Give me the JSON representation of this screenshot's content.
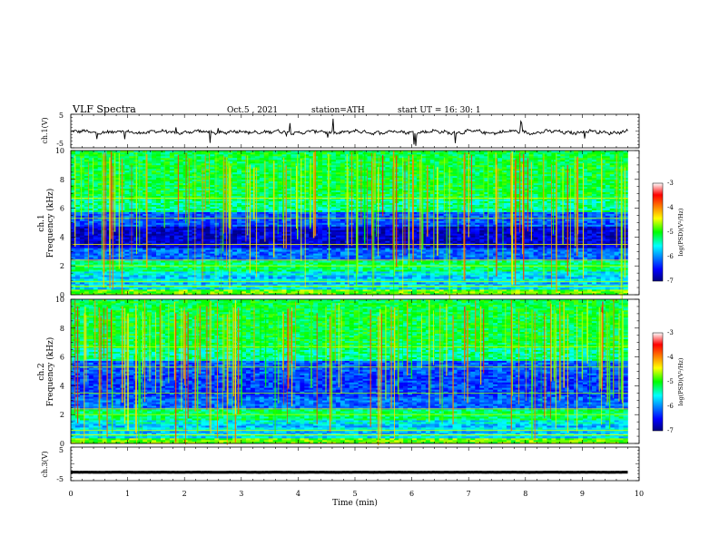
{
  "header": {
    "title": "VLF  Spectra",
    "date": "Oct.5  , 2021",
    "station": "station=ATH",
    "start": "start  UT  =   16: 30: 1"
  },
  "colors": {
    "background": "#ffffff",
    "axis": "#000000",
    "trace": "#000000"
  },
  "chart_data": [
    {
      "type": "line",
      "panel": "ch1-waveform",
      "ylabel": "ch.1(V)",
      "ylim": [
        -5,
        5
      ],
      "yticks": [
        "5",
        "-5"
      ],
      "x_range": [
        0,
        9.8
      ],
      "level": -0.3
    },
    {
      "type": "heatmap",
      "panel": "ch1-spectrogram",
      "ylabel_line1": "ch.1",
      "ylabel_line2": "Frequency  (kHz)",
      "ylim": [
        0,
        10
      ],
      "yticks": [
        "10",
        "8",
        "6",
        "4",
        "2",
        "0"
      ],
      "x_range": [
        0,
        9.8
      ],
      "colorbar": {
        "label": "log(PSD)(V²/Hz)",
        "ticks": [
          "-3",
          "-4",
          "-5",
          "-6",
          "-7"
        ],
        "range": [
          -7,
          -3
        ]
      }
    },
    {
      "type": "heatmap",
      "panel": "ch2-spectrogram",
      "ylabel_line1": "ch.2",
      "ylabel_line2": "Frequency  (kHz)",
      "ylim": [
        0,
        10
      ],
      "yticks": [
        "10",
        "8",
        "6",
        "4",
        "2",
        "0"
      ],
      "x_range": [
        0,
        9.8
      ],
      "colorbar": {
        "label": "log(PSD)(V²/Hz)",
        "ticks": [
          "-3",
          "-4",
          "-5",
          "-6",
          "-7"
        ],
        "range": [
          -7,
          -3
        ]
      }
    },
    {
      "type": "line",
      "panel": "ch3-waveform",
      "ylabel": "ch.3(V)",
      "ylim": [
        -5,
        5
      ],
      "yticks": [
        "5",
        "-5"
      ],
      "x_range": [
        0,
        9.8
      ],
      "level": -2.5
    }
  ],
  "x_axis": {
    "label": "Time  (min)",
    "range": [
      0,
      10
    ],
    "ticks": [
      "0",
      "1",
      "2",
      "3",
      "4",
      "5",
      "6",
      "7",
      "8",
      "9",
      "10"
    ]
  }
}
